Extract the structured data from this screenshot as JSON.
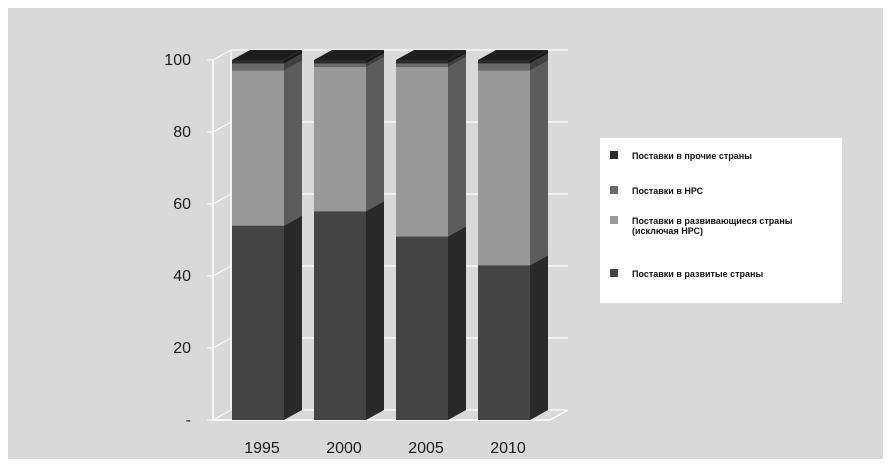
{
  "chart_data": {
    "type": "bar",
    "stacked": true,
    "three_d": true,
    "categories": [
      "1995",
      "2000",
      "2005",
      "2010"
    ],
    "series": [
      {
        "name": "Поставки в развитые страны",
        "values": [
          54,
          58,
          51,
          43
        ],
        "color": "#444444"
      },
      {
        "name": "Поставки в развивающиеся страны (исключая НРС)",
        "values": [
          43,
          40,
          47,
          54
        ],
        "color": "#999999"
      },
      {
        "name": "Поставки в НРС",
        "values": [
          2,
          1,
          1,
          2
        ],
        "color": "#6a6a6a"
      },
      {
        "name": "Поставки в прочие страны",
        "values": [
          1,
          1,
          1,
          1
        ],
        "color": "#2b2b2b"
      }
    ],
    "legend_order": [
      3,
      2,
      1,
      0
    ],
    "yticks": [
      "-",
      "20",
      "40",
      "60",
      "80",
      "100"
    ],
    "ylim": [
      0,
      100
    ],
    "grid": true,
    "legend_position": "right"
  }
}
